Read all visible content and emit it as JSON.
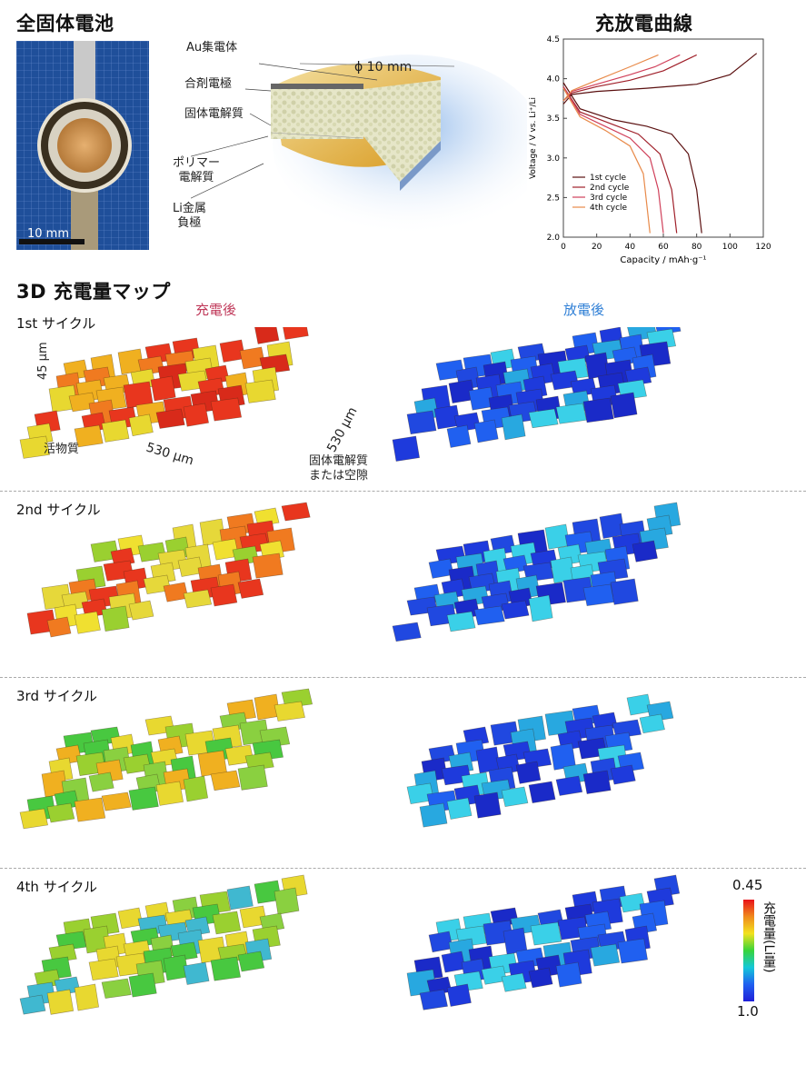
{
  "titles": {
    "battery": "全固体電池",
    "curve": "充放電曲線",
    "map": "3D 充電量マップ",
    "charged": "充電後",
    "discharged": "放電後"
  },
  "photo": {
    "scale_label": "10 mm"
  },
  "diagram": {
    "diameter": "ϕ 10 mm",
    "labels": [
      {
        "text": "Au集電体"
      },
      {
        "text": "合剤電極"
      },
      {
        "text": "固体電解質"
      },
      {
        "text": "ポリマー\n電解質"
      },
      {
        "text": "Li金属\n負極"
      }
    ]
  },
  "map_labels": {
    "thickness": "45 µm",
    "width_x": "530 µm",
    "width_y": "530 µm",
    "active": "活物質",
    "electrolyte": "固体電解質\nまたは空隙"
  },
  "cycles": [
    {
      "label": "1st サイクル"
    },
    {
      "label": "2nd サイクル"
    },
    {
      "label": "3rd サイクル"
    },
    {
      "label": "4th サイクル"
    }
  ],
  "colorbar": {
    "max": "0.45",
    "min": "1.0",
    "title": "充電量(Li量)"
  },
  "colors": {
    "charged": "#c0395a",
    "discharged": "#2f7fd6"
  },
  "chart_data": {
    "type": "line",
    "xlabel": "Capacity / mAh·g⁻¹",
    "ylabel": "Voltage / V vs. Li⁺/Li",
    "xlim": [
      0,
      120
    ],
    "ylim": [
      2.0,
      4.5
    ],
    "xticks": [
      "0",
      "20",
      "40",
      "60",
      "80",
      "100",
      "120"
    ],
    "yticks": [
      "2.0",
      "2.5",
      "3.0",
      "3.5",
      "4.0",
      "4.5"
    ],
    "legend_position": "bottom-left",
    "series": [
      {
        "name": "1st cycle",
        "color": "#5a0f0f",
        "charge": [
          [
            0,
            3.68
          ],
          [
            5,
            3.8
          ],
          [
            20,
            3.84
          ],
          [
            50,
            3.88
          ],
          [
            80,
            3.93
          ],
          [
            100,
            4.05
          ],
          [
            116,
            4.32
          ]
        ],
        "discharge": [
          [
            0,
            3.95
          ],
          [
            10,
            3.62
          ],
          [
            30,
            3.48
          ],
          [
            50,
            3.4
          ],
          [
            65,
            3.3
          ],
          [
            75,
            3.05
          ],
          [
            80,
            2.6
          ],
          [
            83,
            2.05
          ]
        ]
      },
      {
        "name": "2nd cycle",
        "color": "#a0202a",
        "charge": [
          [
            0,
            3.72
          ],
          [
            5,
            3.82
          ],
          [
            20,
            3.9
          ],
          [
            40,
            3.98
          ],
          [
            60,
            4.1
          ],
          [
            80,
            4.3
          ]
        ],
        "discharge": [
          [
            0,
            3.9
          ],
          [
            10,
            3.58
          ],
          [
            30,
            3.42
          ],
          [
            45,
            3.3
          ],
          [
            58,
            3.05
          ],
          [
            65,
            2.6
          ],
          [
            68,
            2.05
          ]
        ]
      },
      {
        "name": "3rd cycle",
        "color": "#d0405a",
        "charge": [
          [
            0,
            3.72
          ],
          [
            5,
            3.84
          ],
          [
            20,
            3.93
          ],
          [
            40,
            4.05
          ],
          [
            55,
            4.15
          ],
          [
            70,
            4.3
          ]
        ],
        "discharge": [
          [
            0,
            3.9
          ],
          [
            10,
            3.55
          ],
          [
            25,
            3.4
          ],
          [
            40,
            3.25
          ],
          [
            52,
            3.0
          ],
          [
            57,
            2.6
          ],
          [
            60,
            2.05
          ]
        ]
      },
      {
        "name": "4th cycle",
        "color": "#e88a4a",
        "charge": [
          [
            0,
            3.72
          ],
          [
            5,
            3.85
          ],
          [
            20,
            3.98
          ],
          [
            40,
            4.15
          ],
          [
            57,
            4.3
          ]
        ],
        "discharge": [
          [
            0,
            3.88
          ],
          [
            10,
            3.52
          ],
          [
            25,
            3.35
          ],
          [
            40,
            3.15
          ],
          [
            48,
            2.8
          ],
          [
            52,
            2.05
          ]
        ]
      }
    ]
  }
}
